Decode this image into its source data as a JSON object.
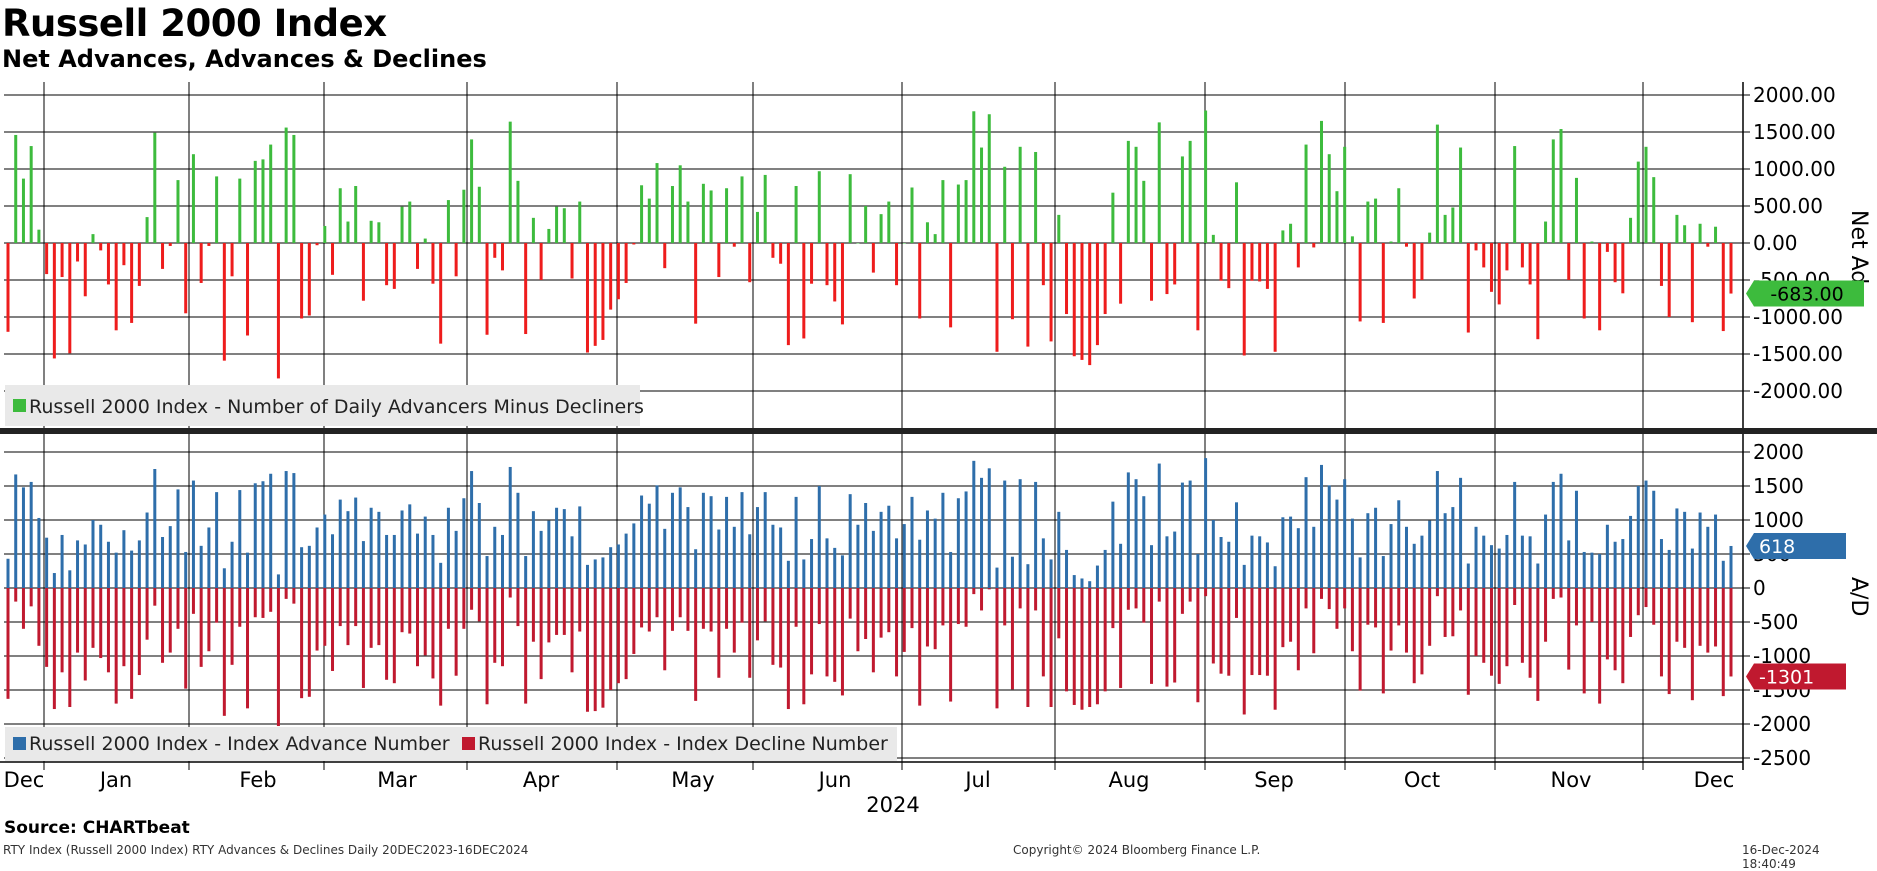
{
  "header": {
    "title": "Russell 2000 Index",
    "subtitle": "Net Advances, Advances & Declines",
    "source": "Source: CHARTbeat",
    "footer_left": "RTY Index (Russell 2000 Index) RTY Advances & Declines  Daily 20DEC2023-16DEC2024",
    "footer_center": "Copyright© 2024 Bloomberg Finance L.P.",
    "footer_right": "16-Dec-2024 18:40:49"
  },
  "colors": {
    "net_positive": "#3dbb3d",
    "net_negative": "#ee1c1c",
    "advances": "#2e6eaa",
    "declines": "#c0192f",
    "net_tag": "#3dbb3d",
    "adv_tag": "#2e6eaa",
    "dec_tag": "#c0192f"
  },
  "chart_data": [
    {
      "type": "bar",
      "panel": "top",
      "ylabel": "Net Adv.",
      "ylim": [
        -2500,
        2200
      ],
      "yticks": [
        "2000.00",
        "1500.00",
        "1000.00",
        "500.00",
        "0.00",
        "-500.00",
        "-1000.00",
        "-1500.00",
        "-2000.00"
      ],
      "ytick_values": [
        2000,
        1500,
        1000,
        500,
        0,
        -500,
        -1000,
        -1500,
        -2000
      ],
      "legend": [
        "Russell 2000 Index - Number of Daily Advancers Minus Decliners"
      ],
      "last_value_label": "-683.00",
      "last_value": -683,
      "values": [
        -1200,
        1460,
        870,
        1310,
        180,
        -420,
        -1560,
        -460,
        -1490,
        -250,
        -720,
        120,
        -100,
        -560,
        -1180,
        -300,
        -1080,
        -580,
        350,
        1490,
        -350,
        -40,
        850,
        -950,
        1200,
        -540,
        -40,
        900,
        -1590,
        -450,
        870,
        -1250,
        1110,
        1130,
        1330,
        -1830,
        1560,
        1460,
        -1020,
        -980,
        -30,
        230,
        -430,
        740,
        290,
        770,
        -780,
        300,
        280,
        -570,
        -620,
        490,
        560,
        -350,
        60,
        -550,
        -1360,
        580,
        -450,
        720,
        1400,
        760,
        -1240,
        -200,
        -370,
        1640,
        840,
        -1230,
        340,
        -500,
        190,
        490,
        470,
        -480,
        560,
        -1480,
        -1390,
        -1310,
        -900,
        -760,
        -540,
        -20,
        780,
        600,
        1080,
        -340,
        770,
        1050,
        560,
        -1090,
        800,
        710,
        -460,
        740,
        -50,
        900,
        -530,
        420,
        920,
        -200,
        -280,
        -1380,
        770,
        -1290,
        -550,
        970,
        -570,
        -790,
        -1100,
        930,
        0,
        500,
        -400,
        390,
        560,
        -570,
        0,
        750,
        -1020,
        280,
        120,
        850,
        -1140,
        790,
        850,
        1780,
        1290,
        1740,
        -1470,
        1030,
        -1030,
        1300,
        -1400,
        1230,
        -570,
        -1330,
        380,
        -960,
        -1530,
        -1580,
        -1650,
        -1380,
        -960,
        680,
        -820,
        1380,
        1300,
        840,
        -780,
        1630,
        -690,
        -560,
        1170,
        1380,
        -1180,
        1790,
        110,
        -510,
        -610,
        820,
        -1520,
        -510,
        -520,
        -620,
        -1470,
        170,
        260,
        -330,
        1330,
        -60,
        1650,
        1200,
        700,
        1300,
        90,
        -1060,
        560,
        600,
        -1080,
        20,
        740,
        -50,
        -750,
        -500,
        140,
        1600,
        380,
        480,
        1290,
        -1210,
        -100,
        -330,
        -660,
        -830,
        -370,
        1310,
        -330,
        -560,
        -1300,
        290,
        1400,
        1540,
        -500,
        880,
        -1020,
        20,
        -1180,
        -120,
        -530,
        -680,
        340,
        1100,
        1300,
        890,
        -580,
        -1000,
        380,
        240,
        -1070,
        260,
        -50,
        220,
        -1190,
        -683
      ]
    },
    {
      "type": "bar",
      "panel": "bottom",
      "ylabel": "A/D",
      "ylim": [
        -2700,
        2200
      ],
      "yticks": [
        "2000",
        "1500",
        "1000",
        "500",
        "0",
        "-500",
        "-1000",
        "-1500",
        "-2000",
        "-2500"
      ],
      "ytick_values": [
        2000,
        1500,
        1000,
        500,
        0,
        -500,
        -1000,
        -1500,
        -2000,
        -2500
      ],
      "legend": [
        "Russell 2000 Index - Index Advance Number",
        "Russell 2000 Index - Index Decline Number"
      ],
      "last_advance_label": "618",
      "last_advance": 618,
      "last_decline_label": "-1301",
      "last_decline": -1301,
      "series": [
        {
          "name": "Russell 2000 Index - Index Advance Number",
          "values": [
            430,
            1670,
            1480,
            1560,
            1030,
            740,
            220,
            780,
            260,
            700,
            640,
            1000,
            930,
            680,
            520,
            850,
            550,
            700,
            1110,
            1750,
            750,
            910,
            1450,
            530,
            1580,
            620,
            890,
            1410,
            290,
            680,
            1440,
            520,
            1540,
            1570,
            1680,
            200,
            1720,
            1690,
            600,
            620,
            890,
            1080,
            790,
            1300,
            1130,
            1330,
            690,
            1180,
            1120,
            780,
            780,
            1140,
            1230,
            800,
            1050,
            780,
            370,
            1180,
            840,
            1320,
            1720,
            1250,
            470,
            900,
            780,
            1780,
            1400,
            470,
            1130,
            840,
            990,
            1180,
            1160,
            760,
            1200,
            340,
            420,
            450,
            600,
            640,
            800,
            950,
            1360,
            1240,
            1510,
            870,
            1400,
            1480,
            1190,
            570,
            1400,
            1350,
            860,
            1340,
            900,
            1410,
            790,
            1190,
            1410,
            930,
            890,
            400,
            1340,
            420,
            720,
            1500,
            730,
            590,
            480,
            1380,
            930,
            1250,
            840,
            1120,
            1210,
            730,
            940,
            1340,
            710,
            1140,
            1020,
            1400,
            530,
            1320,
            1420,
            1870,
            1620,
            1760,
            300,
            1580,
            460,
            1600,
            350,
            1560,
            730,
            420,
            1120,
            560,
            190,
            140,
            100,
            330,
            560,
            1270,
            650,
            1700,
            1600,
            1350,
            630,
            1830,
            760,
            830,
            1550,
            1580,
            500,
            1910,
            1000,
            750,
            680,
            1260,
            340,
            770,
            760,
            670,
            320,
            1040,
            1050,
            880,
            1630,
            900,
            1810,
            1510,
            1300,
            1600,
            1020,
            450,
            1100,
            1180,
            470,
            940,
            1290,
            900,
            650,
            770,
            990,
            1720,
            1100,
            1190,
            1620,
            360,
            900,
            770,
            630,
            580,
            780,
            1560,
            770,
            760,
            360,
            1080,
            1560,
            1680,
            700,
            1430,
            530,
            520,
            500,
            930,
            680,
            720,
            1060,
            1500,
            1580,
            1430,
            720,
            560,
            1170,
            1120,
            580,
            1110,
            900,
            1080,
            400,
            618
          ]
        },
        {
          "name": "Russell 2000 Index - Index Decline Number",
          "values": [
            -1630,
            -200,
            -600,
            -270,
            -850,
            -1160,
            -1780,
            -1240,
            -1750,
            -950,
            -1360,
            -880,
            -1030,
            -1240,
            -1700,
            -1150,
            -1630,
            -1280,
            -760,
            -260,
            -1100,
            -950,
            -600,
            -1480,
            -380,
            -1160,
            -930,
            -510,
            -1880,
            -1130,
            -570,
            -1770,
            -430,
            -440,
            -350,
            -2030,
            -160,
            -230,
            -1620,
            -1600,
            -920,
            -850,
            -1220,
            -560,
            -840,
            -560,
            -1470,
            -880,
            -840,
            -1350,
            -1400,
            -650,
            -670,
            -1150,
            -990,
            -1330,
            -1730,
            -600,
            -1290,
            -600,
            -320,
            -490,
            -1710,
            -1100,
            -1150,
            -140,
            -560,
            -1700,
            -790,
            -1340,
            -800,
            -690,
            -690,
            -1240,
            -640,
            -1820,
            -1810,
            -1760,
            -1500,
            -1400,
            -1340,
            -970,
            -580,
            -640,
            -430,
            -1210,
            -630,
            -430,
            -630,
            -1660,
            -600,
            -640,
            -1320,
            -600,
            -950,
            -510,
            -1320,
            -770,
            -490,
            -1130,
            -1170,
            -1780,
            -570,
            -1710,
            -1270,
            -530,
            -1300,
            -1380,
            -1580,
            -450,
            -930,
            -750,
            -1240,
            -730,
            -650,
            -1300,
            -940,
            -590,
            -1730,
            -860,
            -900,
            -550,
            -1670,
            -530,
            -570,
            -90,
            -330,
            -20,
            -1770,
            -550,
            -1490,
            -300,
            -1750,
            -330,
            -1300,
            -1750,
            -740,
            -1520,
            -1720,
            -1790,
            -1750,
            -1710,
            -1520,
            -590,
            -1470,
            -320,
            -300,
            -510,
            -1410,
            -200,
            -1450,
            -1390,
            -380,
            -200,
            -1680,
            -120,
            -1110,
            -1260,
            -1290,
            -440,
            -1860,
            -1280,
            -1280,
            -1290,
            -1790,
            -870,
            -790,
            -1210,
            -300,
            -960,
            -160,
            -310,
            -600,
            -300,
            -930,
            -1510,
            -540,
            -580,
            -1550,
            -920,
            -550,
            -950,
            -1400,
            -1270,
            -850,
            -120,
            -720,
            -710,
            -330,
            -1570,
            -1000,
            -1100,
            -1290,
            -1410,
            -1150,
            -250,
            -1100,
            -1320,
            -1660,
            -790,
            -160,
            -140,
            -1200,
            -550,
            -1550,
            -500,
            -1700,
            -1050,
            -1210,
            -1400,
            -720,
            -400,
            -280,
            -540,
            -1300,
            -1560,
            -790,
            -880,
            -1650,
            -850,
            -950,
            -860,
            -1590,
            -1301
          ]
        }
      ]
    }
  ],
  "x_axis": {
    "months": [
      "Dec",
      "Jan",
      "Feb",
      "Mar",
      "Apr",
      "May",
      "Jun",
      "Jul",
      "Aug",
      "Sep",
      "Oct",
      "Nov",
      "Dec"
    ],
    "year_label": "2024"
  }
}
